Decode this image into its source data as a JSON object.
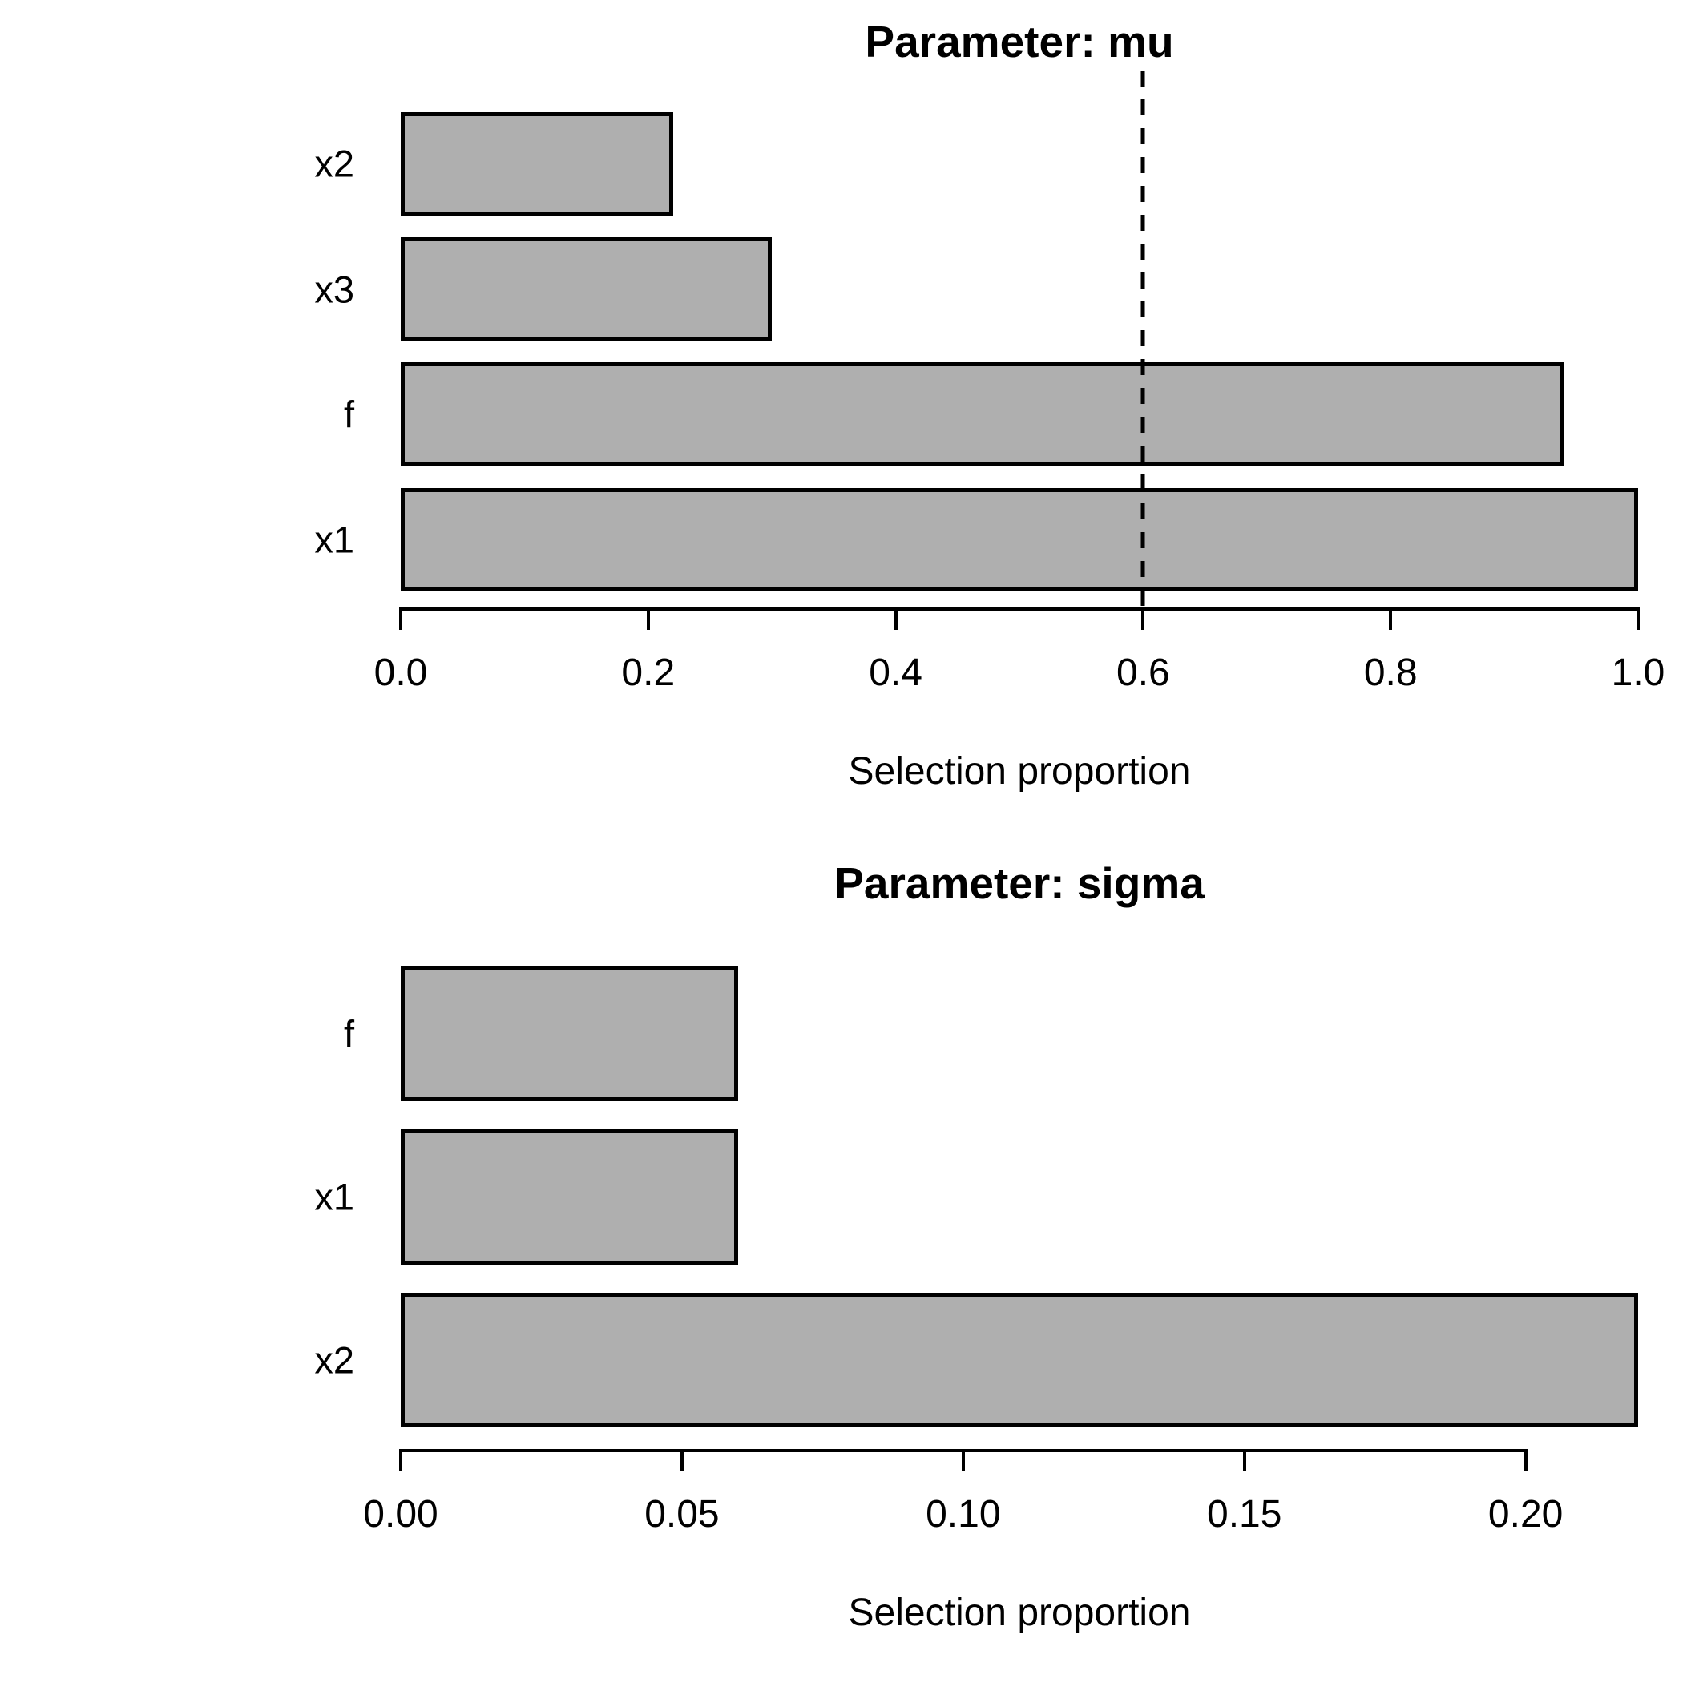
{
  "figure": {
    "background": "#FFFFFF",
    "text_color": "#000000"
  },
  "chart_data": [
    {
      "type": "bar",
      "orientation": "horizontal",
      "title": "Parameter: mu",
      "categories": [
        "x2",
        "x3",
        "f",
        "x1"
      ],
      "values": [
        0.22,
        0.3,
        0.94,
        1.0
      ],
      "xlabel": "Selection proportion",
      "xlim": [
        0,
        1.0
      ],
      "ticks": [
        0,
        0.2,
        0.4,
        0.6,
        0.8,
        1.0
      ],
      "tick_labels": [
        "0.0",
        "0.2",
        "0.4",
        "0.6",
        "0.8",
        "1.0"
      ],
      "cutoff": 0.6,
      "cutoff_style": "dashed",
      "bar_fill": "#AFAFAF",
      "bar_border": "#000000",
      "grid": false,
      "legend": null
    },
    {
      "type": "bar",
      "orientation": "horizontal",
      "title": "Parameter: sigma",
      "categories": [
        "f",
        "x1",
        "x2"
      ],
      "values": [
        0.06,
        0.06,
        0.22
      ],
      "xlabel": "Selection proportion",
      "xlim": [
        0,
        0.22
      ],
      "ticks": [
        0,
        0.05,
        0.1,
        0.15,
        0.2
      ],
      "tick_labels": [
        "0.00",
        "0.05",
        "0.10",
        "0.15",
        "0.20"
      ],
      "cutoff": null,
      "cutoff_style": null,
      "bar_fill": "#AFAFAF",
      "bar_border": "#000000",
      "grid": false,
      "legend": null
    }
  ]
}
